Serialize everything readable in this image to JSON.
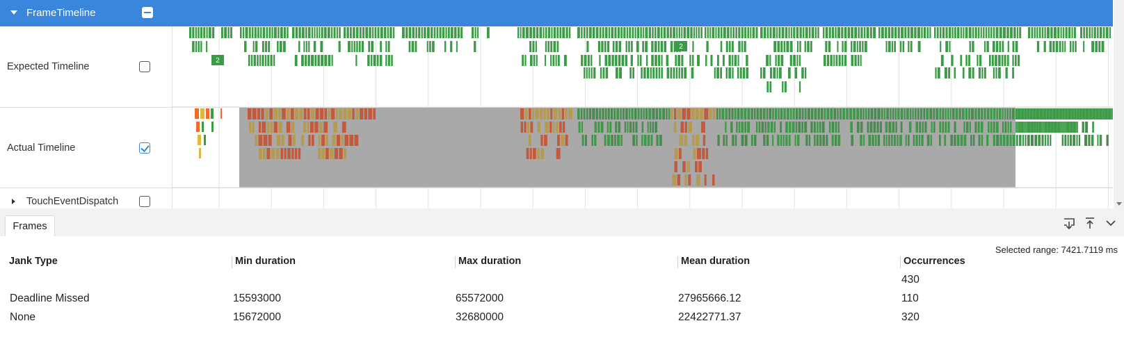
{
  "timeline": {
    "group_title": "FrameTimeline",
    "rows": [
      {
        "label": "Expected Timeline",
        "checked": false
      },
      {
        "label": "Actual Timeline",
        "checked": true
      },
      {
        "label": "TouchEventDispatch",
        "checked": false
      }
    ],
    "expected_badges": [
      "2",
      "2"
    ]
  },
  "panel": {
    "tab_label": "Frames",
    "toolbar_icons": [
      "download-icon",
      "upload-icon",
      "chevron-down-icon"
    ],
    "selected_range": "Selected range: 7421.7119 ms",
    "columns": [
      "Jank Type",
      "Min duration",
      "Max duration",
      "Mean duration",
      "Occurrences"
    ],
    "rows": [
      {
        "jank_type": "",
        "min": "",
        "max": "",
        "mean": "",
        "occurrences": "430"
      },
      {
        "jank_type": "Deadline Missed",
        "min": "15593000",
        "max": "65572000",
        "mean": "27965666.12",
        "occurrences": "110"
      },
      {
        "jank_type": "None",
        "min": "15672000",
        "max": "32680000",
        "mean": "22422771.37",
        "occurrences": "320"
      }
    ]
  },
  "colors": {
    "header_blue": "#3a86dc",
    "frame_green": "#3c9b46",
    "frame_dark_green": "#4a8a50",
    "jank_orange": "#ef6c2b",
    "jank_red": "#c25a3d",
    "jank_olive": "#b59a52",
    "jank_yellow": "#e0b83a",
    "selection_gray": "#a9a9a9"
  }
}
